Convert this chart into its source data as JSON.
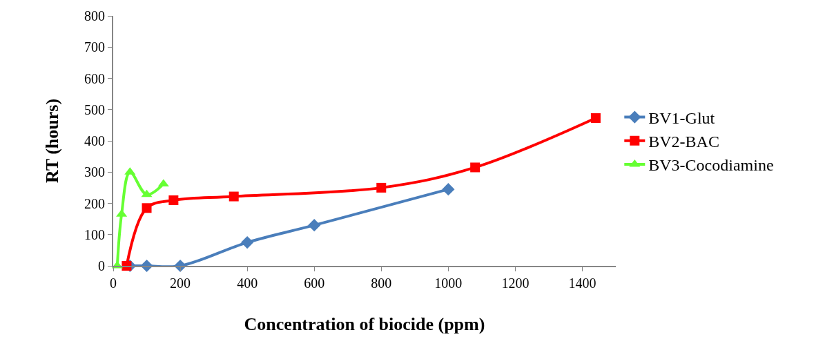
{
  "chart_data": {
    "type": "line",
    "xlabel": "Concentration of biocide (ppm)",
    "ylabel": "RT (hours)",
    "xlim": [
      0,
      1500
    ],
    "xticks": [
      0,
      200,
      400,
      600,
      800,
      1000,
      1200,
      1400
    ],
    "ylim": [
      0,
      800
    ],
    "yticks": [
      0,
      100,
      200,
      300,
      400,
      500,
      600,
      700,
      800
    ],
    "legend": "right",
    "series": [
      {
        "name": "BV1-Glut",
        "color": "#4a7ebb",
        "marker": "diamond",
        "x": [
          50,
          100,
          200,
          400,
          600,
          1000
        ],
        "values": [
          0,
          0,
          0,
          75,
          130,
          245
        ]
      },
      {
        "name": "BV2-BAC",
        "color": "#ff0000",
        "marker": "square",
        "x": [
          40,
          100,
          180,
          360,
          800,
          1080,
          1440
        ],
        "values": [
          0,
          185,
          210,
          222,
          250,
          315,
          473
        ]
      },
      {
        "name": "BV3-Cocodiamine",
        "color": "#66ff33",
        "marker": "triangle",
        "x": [
          12,
          25,
          50,
          100,
          150
        ],
        "values": [
          0,
          165,
          300,
          228,
          262
        ]
      }
    ]
  }
}
